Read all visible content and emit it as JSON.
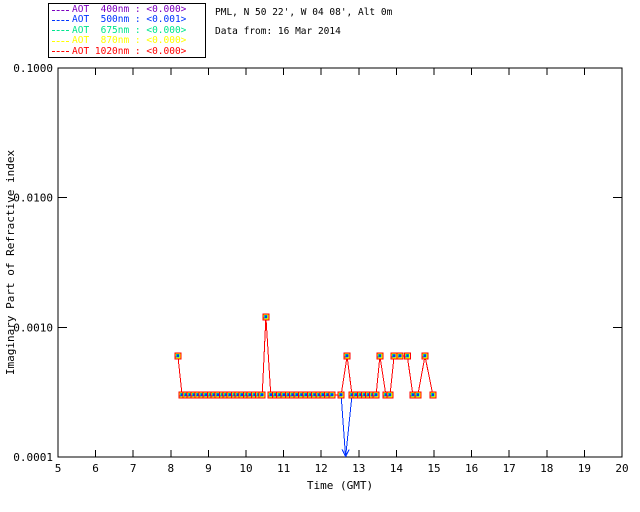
{
  "header": {
    "location": "PML, N 50 22', W 04 08', Alt 0m",
    "date_line": "Data from: 16 Mar 2014"
  },
  "legend": {
    "items": [
      {
        "label": "AOT  400nm : <0.000>",
        "series": "AOT 400nm",
        "mean_value": "<0.000>",
        "color": "#7d00bf"
      },
      {
        "label": "AOT  500nm : <0.001>",
        "series": "AOT 500nm",
        "mean_value": "<0.001>",
        "color": "#0033ff"
      },
      {
        "label": "AOT  675nm : <0.000>",
        "series": "AOT 675nm",
        "mean_value": "<0.000>",
        "color": "#00e68c"
      },
      {
        "label": "AOT  870nm : <0.000>",
        "series": "AOT 870nm",
        "mean_value": "<0.000>",
        "color": "#ffff00"
      },
      {
        "label": "AOT 1020nm : <0.000>",
        "series": "AOT 1020nm",
        "mean_value": "<0.000>",
        "color": "#ff0000"
      }
    ]
  },
  "chart_data": {
    "type": "line",
    "title": "",
    "xlabel": "Time (GMT)",
    "ylabel": "Imaginary Part of Refractive index",
    "xlim": [
      5,
      20
    ],
    "x_ticks": [
      5,
      6,
      7,
      8,
      9,
      10,
      11,
      12,
      13,
      14,
      15,
      16,
      17,
      18,
      19,
      20
    ],
    "y_scale": "log",
    "ylim": [
      0.0001,
      0.1
    ],
    "y_ticks": [
      {
        "label": "0.1000",
        "value": 0.1
      },
      {
        "label": "0.0100",
        "value": 0.01
      },
      {
        "label": "0.0010",
        "value": 0.001
      },
      {
        "label": "0.0001",
        "value": 0.0001
      }
    ],
    "grid": false,
    "legend_position": "top-left-outside",
    "marker_style": "layered filled squares: purple, blue, green, yellow under red",
    "series": [
      {
        "name": "Imaginary refractive index, all AOT wavelengths overlapping (1020nm red drawn on top)",
        "color": "#ff0000",
        "points": [
          [
            8.19,
            0.0006
          ],
          [
            8.3,
            0.0003
          ],
          [
            8.41,
            0.0003
          ],
          [
            8.51,
            0.0003
          ],
          [
            8.62,
            0.0003
          ],
          [
            8.73,
            0.0003
          ],
          [
            8.83,
            0.0003
          ],
          [
            8.94,
            0.0003
          ],
          [
            9.05,
            0.0003
          ],
          [
            9.15,
            0.0003
          ],
          [
            9.26,
            0.0003
          ],
          [
            9.37,
            0.0003
          ],
          [
            9.47,
            0.0003
          ],
          [
            9.58,
            0.0003
          ],
          [
            9.69,
            0.0003
          ],
          [
            9.79,
            0.0003
          ],
          [
            9.9,
            0.0003
          ],
          [
            10.01,
            0.0003
          ],
          [
            10.11,
            0.0003
          ],
          [
            10.22,
            0.0003
          ],
          [
            10.33,
            0.0003
          ],
          [
            10.43,
            0.0003
          ],
          [
            10.53,
            0.0012
          ],
          [
            10.66,
            0.0003
          ],
          [
            10.78,
            0.0003
          ],
          [
            10.89,
            0.0003
          ],
          [
            11.01,
            0.0003
          ],
          [
            11.13,
            0.0003
          ],
          [
            11.24,
            0.0003
          ],
          [
            11.36,
            0.0003
          ],
          [
            11.47,
            0.0003
          ],
          [
            11.59,
            0.0003
          ],
          [
            11.71,
            0.0003
          ],
          [
            11.82,
            0.0003
          ],
          [
            11.94,
            0.0003
          ],
          [
            12.05,
            0.0003
          ],
          [
            12.17,
            0.0003
          ],
          [
            12.29,
            0.0003
          ],
          [
            12.53,
            0.0003
          ],
          [
            12.69,
            0.0006
          ],
          [
            12.82,
            0.0003
          ],
          [
            12.93,
            0.0003
          ],
          [
            13.04,
            0.0003
          ],
          [
            13.15,
            0.0003
          ],
          [
            13.26,
            0.0003
          ],
          [
            13.37,
            0.0003
          ],
          [
            13.46,
            0.0003
          ],
          [
            13.56,
            0.0006
          ],
          [
            13.72,
            0.0003
          ],
          [
            13.83,
            0.0003
          ],
          [
            13.94,
            0.0006
          ],
          [
            14.1,
            0.0006
          ],
          [
            14.29,
            0.0006
          ],
          [
            14.44,
            0.0003
          ],
          [
            14.57,
            0.0003
          ],
          [
            14.76,
            0.0006
          ],
          [
            14.97,
            0.0003
          ]
        ]
      },
      {
        "name": "AOT 500nm dip (blue), clipped at lower axis with arrow",
        "color": "#0033ff",
        "clipped_below_axis": true,
        "points": [
          [
            12.53,
            0.0003
          ],
          [
            12.65,
            0.0001
          ],
          [
            12.82,
            0.0003
          ]
        ]
      }
    ]
  }
}
